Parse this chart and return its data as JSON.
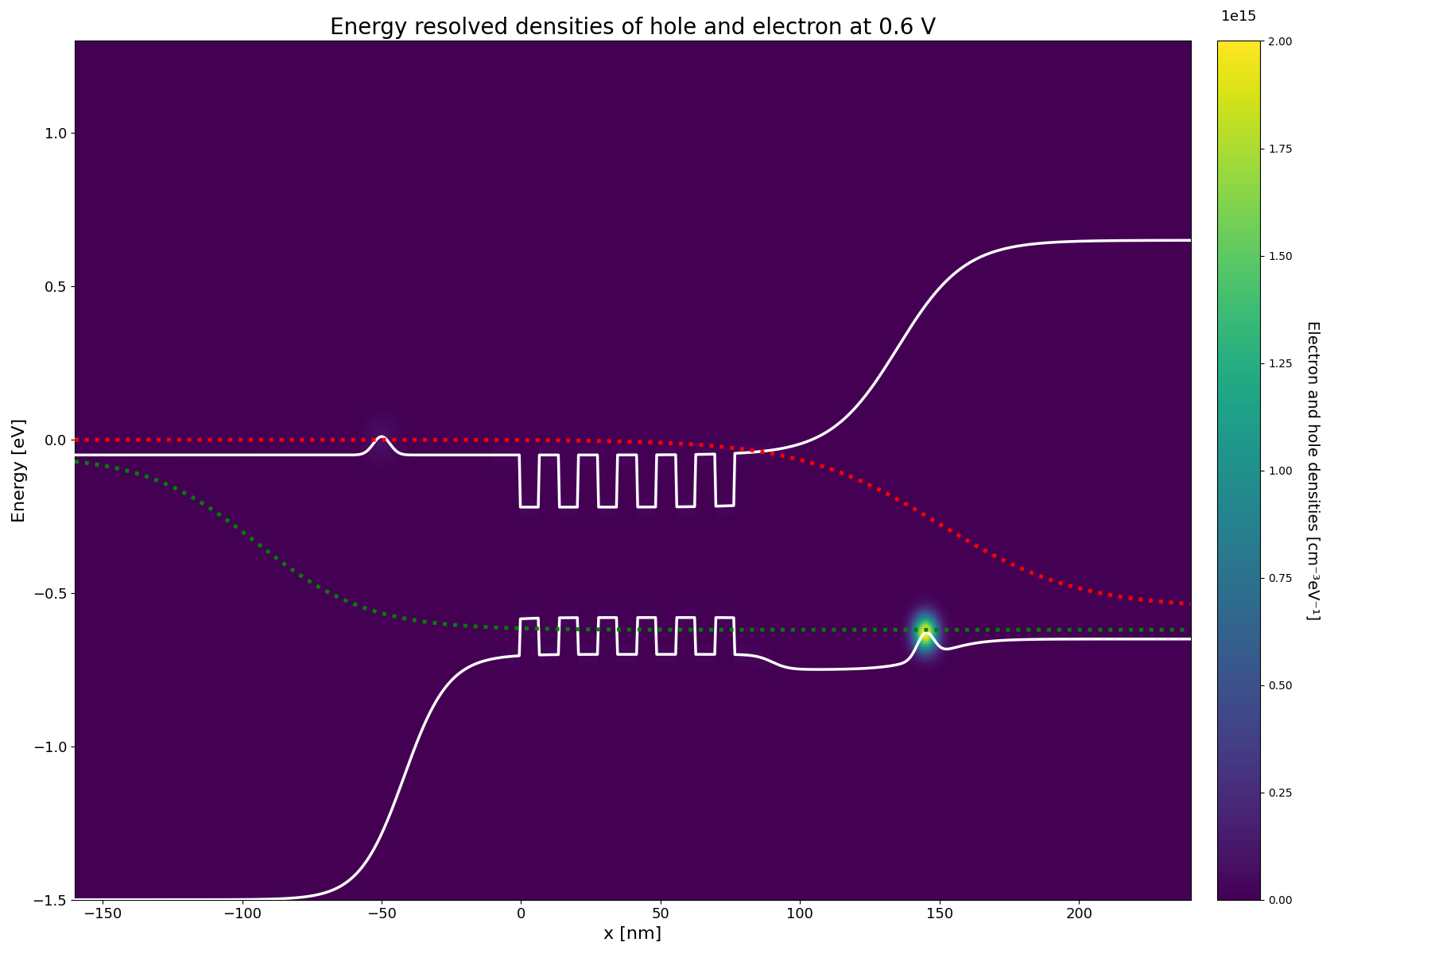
{
  "title": "Energy resolved densities of hole and electron at 0.6 V",
  "xlabel": "x [nm]",
  "ylabel": "Energy [eV]",
  "colorbar_label": "Electron and hole densities [cm⁻³eV⁻¹]",
  "xlim": [
    -160,
    240
  ],
  "ylim": [
    -1.5,
    1.3
  ],
  "x_ticks": [
    -150,
    -100,
    -50,
    0,
    50,
    100,
    150,
    200
  ],
  "y_ticks": [
    -1.5,
    -1.0,
    -0.5,
    0.0,
    0.5,
    1.0
  ],
  "vmin": 0,
  "vmax": 2000000000000000.0,
  "figsize": [
    18,
    12
  ],
  "dpi": 100,
  "title_fontsize": 20,
  "cbar_ticks": [
    0,
    250000000000000.0,
    500000000000000.0,
    750000000000000.0,
    1000000000000000.0,
    1250000000000000.0,
    1500000000000000.0,
    1750000000000000.0,
    2000000000000000.0
  ],
  "cbar_ticklabels": [
    "0.00",
    "0.25",
    "0.50",
    "0.75",
    "1.00",
    "1.25",
    "1.50",
    "1.75",
    "2.00"
  ]
}
